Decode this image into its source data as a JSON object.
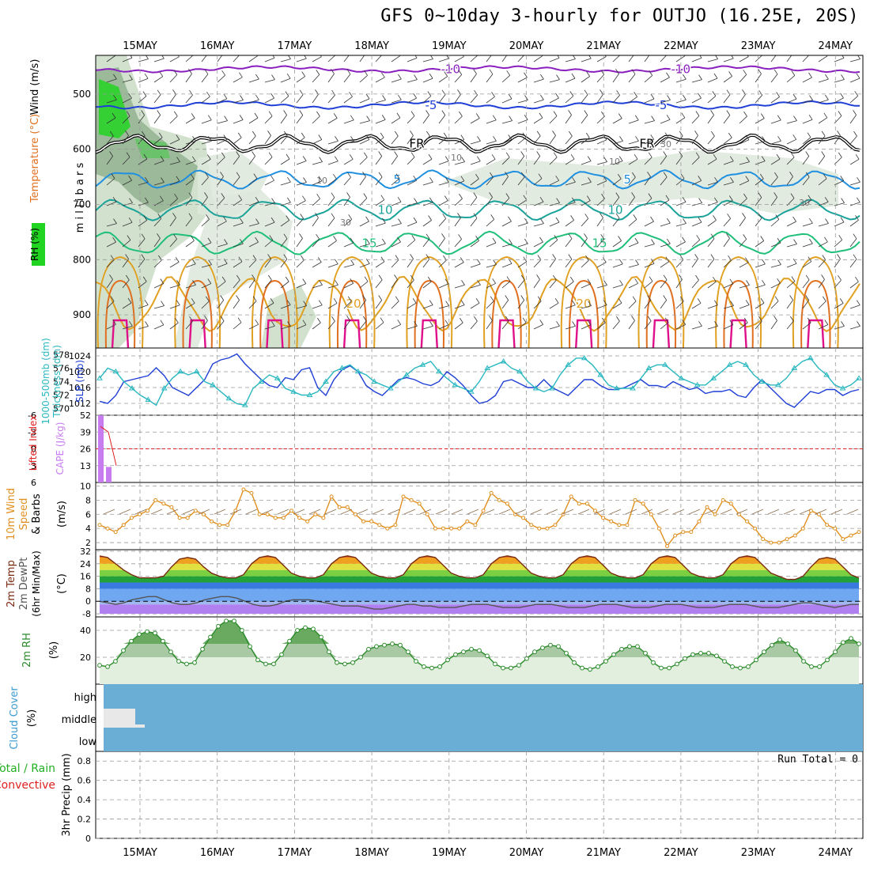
{
  "title": "GFS 0~10day 3-hourly for OUTJO (16.25E, 20S)",
  "dates": [
    "15MAY",
    "16MAY",
    "17MAY",
    "18MAY",
    "19MAY",
    "20MAY",
    "21MAY",
    "22MAY",
    "23MAY",
    "24MAY"
  ],
  "colors": {
    "purple": "#8a1fbf",
    "blue": "#1f3fd6",
    "skyblue": "#1f8fe0",
    "teal": "#1aa39a",
    "green": "#1fbf7a",
    "orange": "#e0a020",
    "darkorange": "#e07020",
    "magenta": "#e0108a",
    "slp": "#1f3fd6",
    "thick": "#2ab8c0",
    "cape": "#c77cf0",
    "li": "#e02020",
    "wind": "#e09020",
    "rh": "#2a8a2a",
    "cloud": "#6aaed6",
    "grid": "#999999"
  },
  "chart_data": [
    {
      "type": "contour",
      "panel": "upper-air",
      "ylabel": "millibars",
      "yticks": [
        500,
        600,
        700,
        800,
        900
      ],
      "legend": [
        "Wind (m/s)",
        "Temperature (°C)",
        "RH (%)"
      ],
      "temperature_contours": [
        {
          "label": "-10",
          "level_mb": 455
        },
        {
          "label": "-5",
          "level_mb": 520
        },
        {
          "label": "FR",
          "level_mb": 590
        },
        {
          "label": "5",
          "level_mb": 655
        },
        {
          "label": "10",
          "level_mb": 710
        },
        {
          "label": "15",
          "level_mb": 770
        },
        {
          "label": "20",
          "level_mb": 880
        }
      ],
      "rh_labels": [
        "10",
        "30",
        "10",
        "30",
        "10",
        "30"
      ]
    },
    {
      "type": "line",
      "panel": "slp-thickness",
      "series": [
        {
          "name": "SLP (mb)",
          "yticks": [
            1012,
            1016,
            1020,
            1024
          ],
          "values": [
            1012.5,
            1012,
            1014,
            1017.5,
            1018,
            1018.5,
            1019,
            1021,
            1019,
            1016,
            1015,
            1014,
            1016,
            1018,
            1022,
            1023,
            1023.5,
            1024.5,
            1022,
            1020,
            1018,
            1016.5,
            1016,
            1018.5,
            1018,
            1020.5,
            1021,
            1016,
            1014,
            1018,
            1020.5,
            1021.5,
            1020,
            1016.5,
            1015,
            1014,
            1016,
            1018,
            1018.5,
            1018,
            1017,
            1016.5,
            1017.5,
            1020,
            1018.5,
            1016.5,
            1014,
            1012,
            1012.5,
            1014,
            1017.5,
            1018,
            1017,
            1016,
            1016,
            1018,
            1016,
            1015,
            1014,
            1016,
            1018,
            1018,
            1016.5,
            1015.5,
            1015.5,
            1016,
            1017,
            1018,
            1016.5,
            1016.5,
            1016,
            1017.5,
            1016.5,
            1015.5,
            1016,
            1014.5,
            1015,
            1015,
            1015.5,
            1014,
            1013.5,
            1016,
            1018,
            1016,
            1014,
            1012,
            1011,
            1013,
            1015,
            1014.5,
            1015.5,
            1015.5,
            1014,
            1015,
            1015.5
          ]
        },
        {
          "name": "1000-500mb Thickness (dm)",
          "yticks": [
            570,
            572,
            574,
            576,
            578
          ],
          "values": [
            574.5,
            576,
            575.5,
            574,
            573,
            572,
            571.3,
            570.5,
            573,
            574.5,
            575.5,
            575,
            575.5,
            574,
            573.5,
            572.5,
            571.5,
            570.7,
            570.5,
            573,
            574,
            575,
            574.5,
            573,
            572.5,
            572,
            572,
            572.5,
            574,
            575.5,
            576,
            576.5,
            575.5,
            575,
            574,
            573.5,
            573,
            574,
            575,
            576,
            576.5,
            577,
            575.5,
            574.5,
            573.5,
            573,
            572.5,
            574,
            576,
            576.5,
            577,
            576,
            575.5,
            574,
            573,
            572.5,
            573,
            575,
            576.5,
            577.5,
            577.5,
            576.5,
            575,
            573.5,
            573,
            573,
            573,
            574.5,
            576,
            576.5,
            576.5,
            575.5,
            574.5,
            574,
            573.5,
            573.5,
            574.5,
            575.5,
            576.5,
            577,
            576.5,
            575,
            574,
            573.5,
            573.5,
            574.5,
            576,
            577,
            577.5,
            576,
            575,
            573.5,
            573,
            573.5,
            574.5
          ]
        }
      ]
    },
    {
      "type": "bar",
      "panel": "cape-li",
      "series": [
        {
          "name": "CAPE (J/kg)",
          "yticks": [
            13,
            26,
            39,
            52
          ],
          "values": [
            52,
            12
          ]
        },
        {
          "name": "Lifted Index",
          "yticks": [
            6,
            3,
            0,
            -3,
            -6
          ],
          "values": [
            -4,
            -3,
            3
          ]
        }
      ]
    },
    {
      "type": "line",
      "panel": "wind10m",
      "ylabel": "10m Wind Speed & Barbs (m/s)",
      "yticks": [
        2,
        4,
        6,
        8,
        10
      ],
      "values": [
        4.5,
        4,
        3.5,
        4.5,
        5.5,
        6,
        6.5,
        8,
        7.5,
        7,
        5.5,
        5.5,
        6.5,
        6,
        5,
        4.5,
        4.5,
        6.5,
        9.5,
        9,
        6,
        6,
        5.5,
        5.5,
        6.5,
        5.5,
        5,
        6,
        5.5,
        8.5,
        7,
        7,
        6,
        5,
        5,
        4.5,
        4,
        4.5,
        8.5,
        8,
        7.5,
        6,
        4,
        4,
        4,
        4,
        5,
        4.5,
        6.5,
        9,
        8,
        7.5,
        6,
        5.5,
        4.5,
        4,
        4,
        4.5,
        6,
        8.5,
        7.5,
        7.5,
        6.5,
        5.5,
        5,
        4.5,
        4.5,
        8,
        7.5,
        6,
        4,
        1.5,
        3,
        3.5,
        3.5,
        5,
        7,
        6,
        8,
        7.5,
        6,
        5,
        4,
        2.5,
        2,
        2,
        2.5,
        3,
        4,
        6.5,
        6,
        4.5,
        4,
        2.5,
        3,
        3.5
      ]
    },
    {
      "type": "area",
      "panel": "temperature",
      "ylabel": "2m Temp 2m DewPt (6hr Min/Max) (°C)",
      "yticks": [
        -8,
        0,
        8,
        16,
        24,
        32
      ],
      "series": [
        {
          "name": "2m Temp",
          "values": [
            29,
            28,
            24,
            20,
            17,
            15,
            15,
            15,
            16,
            22,
            27,
            28,
            27,
            22,
            18,
            16,
            15,
            15,
            17,
            24,
            28,
            29,
            28,
            23,
            18,
            16,
            15,
            15,
            17,
            24,
            28,
            29,
            28,
            23,
            18,
            16,
            15,
            15,
            17,
            24,
            28,
            29,
            28,
            23,
            18,
            16,
            15,
            15,
            17,
            24,
            28,
            29,
            28,
            23,
            18,
            16,
            15,
            15,
            17,
            24,
            28,
            29,
            28,
            23,
            18,
            16,
            15,
            15,
            17,
            24,
            28,
            29,
            28,
            23,
            18,
            16,
            15,
            15,
            17,
            24,
            28,
            29,
            28,
            23,
            18,
            16,
            14,
            14,
            16,
            22,
            27,
            28,
            27,
            22,
            17,
            15
          ]
        },
        {
          "name": "2m DewPt",
          "values": [
            0,
            -1,
            -2,
            -1,
            1,
            2,
            3,
            3,
            1,
            -1,
            -2,
            -2,
            -1,
            1,
            2,
            3,
            3,
            2,
            0,
            -2,
            -3,
            -3,
            -2,
            0,
            1,
            1,
            1,
            0,
            -1,
            -2,
            -3,
            -3,
            -3,
            -4,
            -5,
            -5,
            -4,
            -3,
            -2,
            -2,
            -3,
            -3,
            -4,
            -4,
            -4,
            -3,
            -2,
            -2,
            -2,
            -3,
            -4,
            -4,
            -4,
            -3,
            -2,
            -2,
            -2,
            -3,
            -4,
            -4,
            -4,
            -3,
            -2,
            -2,
            -2,
            -3,
            -4,
            -4,
            -4,
            -3,
            -2,
            -2,
            -2,
            -3,
            -4,
            -4,
            -4,
            -3,
            -2,
            -2,
            -2,
            -3,
            -4,
            -4,
            -4,
            -3,
            -2,
            -1,
            -1,
            -2,
            -3,
            -4,
            -3,
            -2,
            -2
          ]
        }
      ]
    },
    {
      "type": "area",
      "panel": "rh2m",
      "ylabel": "2m RH (%)",
      "yticks": [
        20,
        40
      ],
      "values": [
        14,
        13,
        17,
        25,
        32,
        37,
        39,
        38,
        32,
        24,
        17,
        15,
        16,
        26,
        35,
        43,
        47,
        47,
        40,
        28,
        18,
        15,
        15,
        22,
        32,
        40,
        42,
        41,
        35,
        24,
        16,
        15,
        16,
        20,
        26,
        28,
        29,
        30,
        29,
        24,
        17,
        13,
        12,
        13,
        18,
        22,
        24,
        26,
        25,
        21,
        15,
        12,
        12,
        14,
        19,
        24,
        27,
        29,
        28,
        23,
        16,
        12,
        11,
        13,
        17,
        22,
        26,
        28,
        28,
        23,
        16,
        12,
        12,
        15,
        19,
        22,
        23,
        23,
        21,
        17,
        13,
        12,
        13,
        18,
        24,
        29,
        33,
        30,
        25,
        17,
        13,
        13,
        18,
        24,
        31,
        34,
        30
      ]
    },
    {
      "type": "area",
      "panel": "cloud",
      "ylabel": "Cloud Cover (%)",
      "categories": [
        "high",
        "middle",
        "low"
      ]
    },
    {
      "type": "bar",
      "panel": "precip",
      "ylabel": "3hr Precip (mm)",
      "yticks": [
        0,
        0.2,
        0.4,
        0.6,
        0.8
      ],
      "legend": [
        "Total / Rain",
        "Convective"
      ],
      "run_total": "Run Total = 0",
      "values": []
    }
  ]
}
